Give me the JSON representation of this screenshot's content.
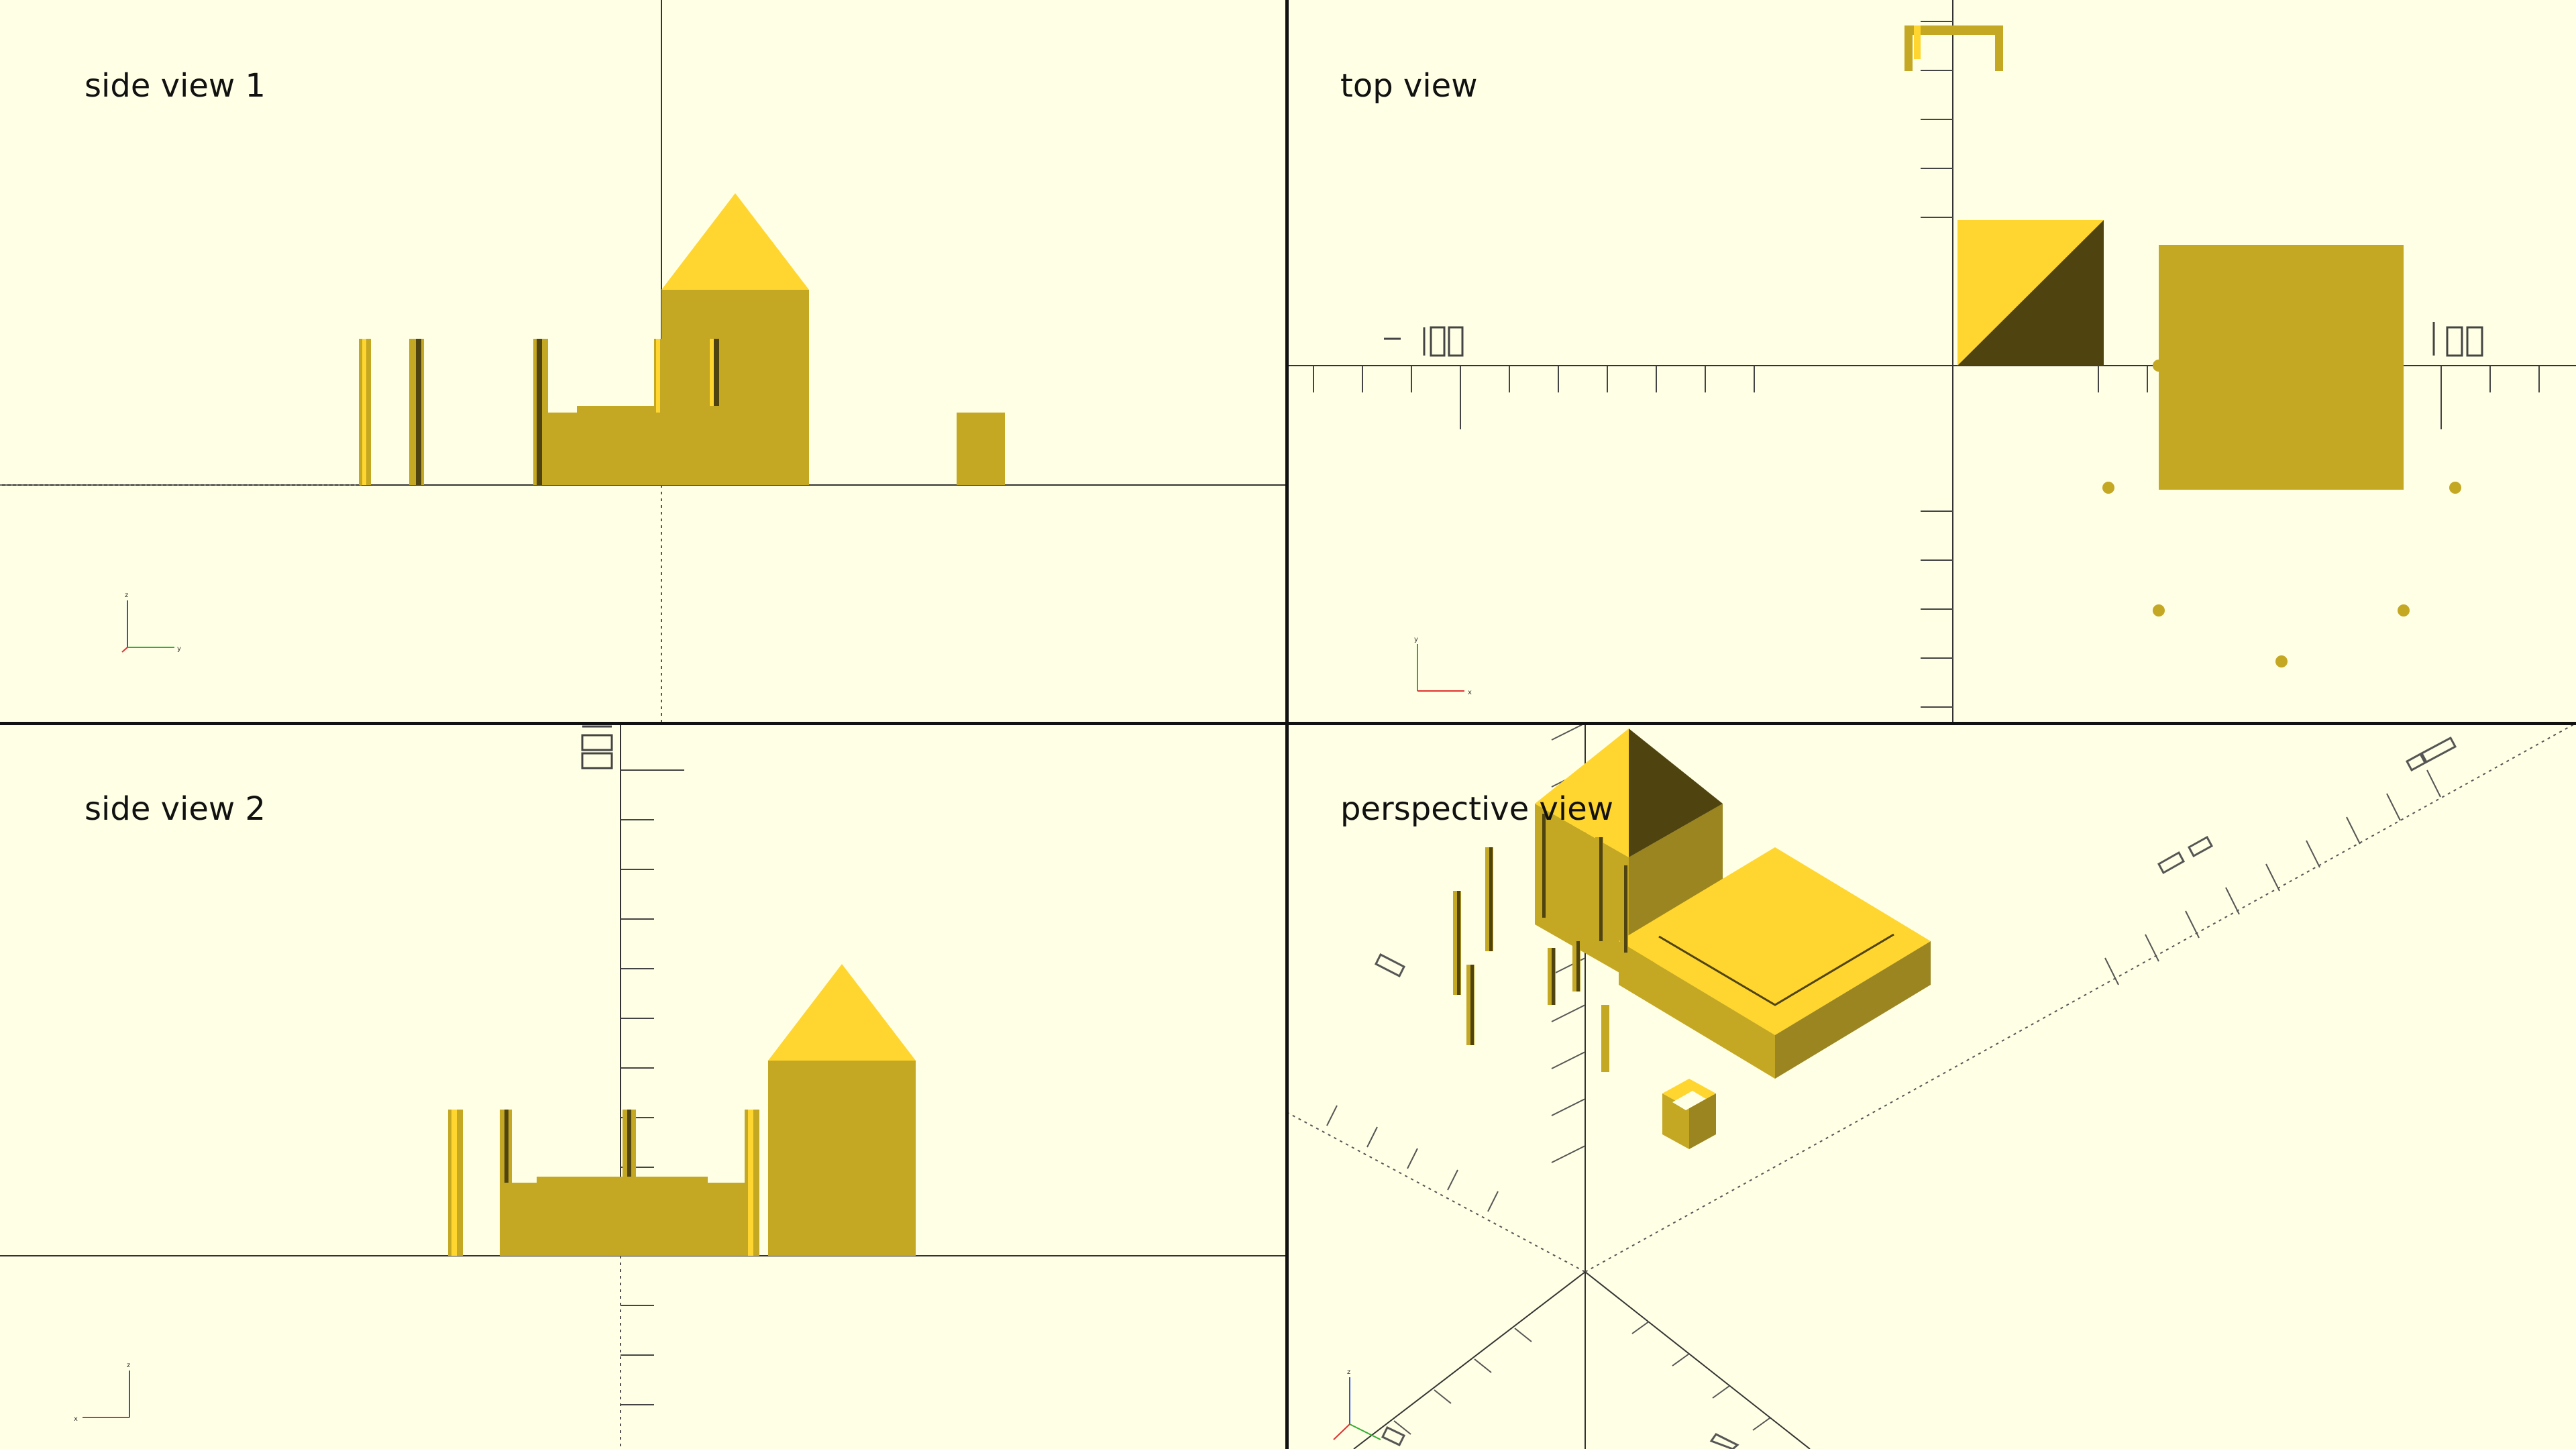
{
  "viewports": {
    "side1": {
      "title": "side view 1"
    },
    "top": {
      "title": "top view"
    },
    "side2": {
      "title": "side view 2"
    },
    "perspective": {
      "title": "perspective view"
    }
  },
  "colors": {
    "background": "#FFFFE5",
    "model_face_light": "#FFD52F",
    "model_face_mid": "#C4A722",
    "model_face_dark": "#9A8520",
    "model_face_shadow": "#4F4310",
    "axis_line": "#333333",
    "axis_x": "#E03030",
    "axis_y": "#30B030",
    "axis_z": "#3050E0"
  },
  "icons": [
    "axis-gizmo-icon"
  ]
}
